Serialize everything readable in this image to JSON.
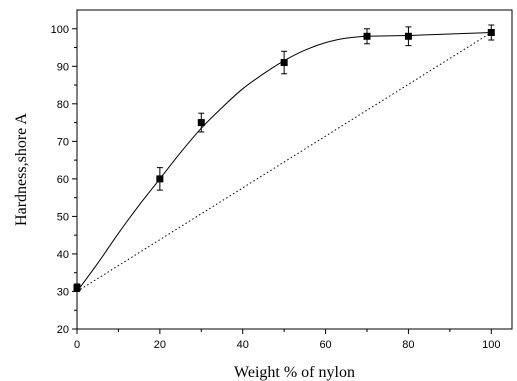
{
  "chart_data": {
    "type": "scatter",
    "xlabel": "Weight % of nylon",
    "ylabel": "Hardness,shore A",
    "xlim": [
      0,
      105
    ],
    "ylim": [
      20,
      105
    ],
    "x_ticks": [
      0,
      20,
      40,
      60,
      80,
      100
    ],
    "y_ticks": [
      20,
      30,
      40,
      50,
      60,
      70,
      80,
      90,
      100
    ],
    "grid": false,
    "series": [
      {
        "marker": "square",
        "x": [
          0,
          20,
          30,
          50,
          70,
          80,
          100
        ],
        "y": [
          31,
          60,
          75,
          91,
          98,
          98,
          99
        ],
        "error": [
          1,
          3,
          2.5,
          3,
          2,
          2.5,
          2
        ]
      }
    ],
    "fit_curve": {
      "style": "solid",
      "x": [
        0,
        5,
        10,
        15,
        20,
        25,
        30,
        35,
        40,
        45,
        50,
        55,
        60,
        65,
        70,
        75,
        80,
        85,
        90,
        95,
        100
      ],
      "y": [
        30,
        37.5,
        45.5,
        53,
        60,
        67,
        73.5,
        79,
        84,
        88,
        91.5,
        94.3,
        96.3,
        97.5,
        98,
        98.1,
        98.2,
        98.4,
        98.6,
        98.8,
        99
      ]
    },
    "reference_line": {
      "style": "dotted",
      "x": [
        0,
        100
      ],
      "y": [
        30,
        99
      ]
    }
  }
}
